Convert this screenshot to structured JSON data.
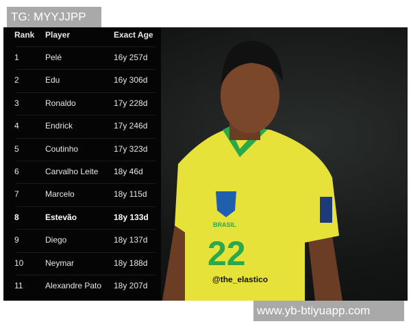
{
  "watermark_top": "TG: MYYJJPP",
  "watermark_bottom": "www.yb-btiyuapp.com",
  "photo_credit": "@the_elastico",
  "jersey_number": "22",
  "jersey_text": "BRASIL",
  "colors": {
    "jersey": "#e6e23a",
    "trim": "#2aa84a",
    "table_bg": "#050505"
  },
  "table": {
    "headers": [
      "Rank",
      "Player",
      "Exact Age"
    ],
    "rows": [
      {
        "rank": "1",
        "player": "Pelé",
        "age": "16y 257d"
      },
      {
        "rank": "2",
        "player": "Edu",
        "age": "16y 306d"
      },
      {
        "rank": "3",
        "player": "Ronaldo",
        "age": "17y 228d"
      },
      {
        "rank": "4",
        "player": "Endrick",
        "age": "17y 246d"
      },
      {
        "rank": "5",
        "player": "Coutinho",
        "age": "17y 323d"
      },
      {
        "rank": "6",
        "player": "Carvalho Leite",
        "age": "18y 46d"
      },
      {
        "rank": "7",
        "player": "Marcelo",
        "age": "18y 115d"
      },
      {
        "rank": "8",
        "player": "Estevão",
        "age": "18y 133d",
        "highlight": true
      },
      {
        "rank": "9",
        "player": "Diego",
        "age": "18y 137d"
      },
      {
        "rank": "10",
        "player": "Neymar",
        "age": "18y 188d"
      },
      {
        "rank": "11",
        "player": "Alexandre Pato",
        "age": "18y 207d"
      }
    ]
  }
}
